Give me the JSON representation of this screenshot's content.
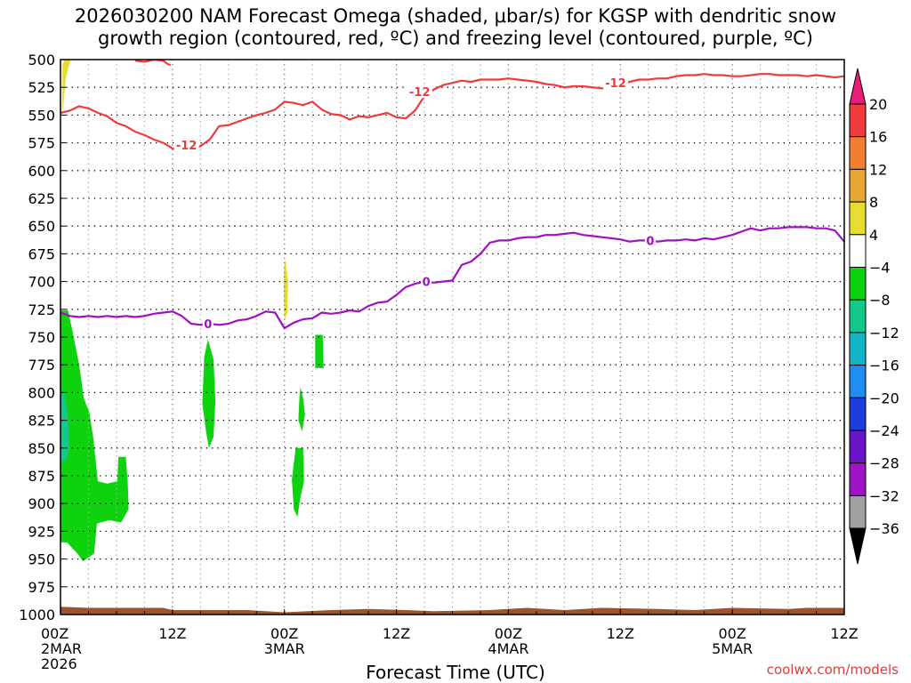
{
  "title": "2026030200 NAM Forecast Omega (shaded, μbar/s) for KGSP with dendritic snow\ngrowth region (contoured, red, ºC) and freezing level (contoured, purple, ºC)",
  "credit": "coolwx.com/models",
  "chart_data": {
    "type": "heatmap",
    "xlabel": "Forecast Time (UTC)",
    "x_range_hours": [
      0,
      84
    ],
    "y_range_hpa": [
      500,
      1000
    ],
    "y_ticks": [
      500,
      525,
      550,
      575,
      600,
      625,
      650,
      675,
      700,
      725,
      750,
      775,
      800,
      825,
      850,
      875,
      900,
      925,
      950,
      975,
      1000
    ],
    "x_ticks": [
      {
        "h": 0,
        "lines": [
          "00Z",
          "2MAR",
          "2026"
        ]
      },
      {
        "h": 12,
        "lines": [
          "12Z"
        ]
      },
      {
        "h": 24,
        "lines": [
          "00Z",
          "3MAR"
        ]
      },
      {
        "h": 36,
        "lines": [
          "12Z"
        ]
      },
      {
        "h": 48,
        "lines": [
          "00Z",
          "4MAR"
        ]
      },
      {
        "h": 60,
        "lines": [
          "12Z"
        ]
      },
      {
        "h": 72,
        "lines": [
          "00Z",
          "5MAR"
        ]
      },
      {
        "h": 84,
        "lines": [
          "12Z"
        ]
      }
    ],
    "grid": true,
    "colorbar": {
      "location": "right",
      "levels": [
        "20",
        "16",
        "12",
        "8",
        "4",
        "−4",
        "−8",
        "−12",
        "−16",
        "−20",
        "−24",
        "−28",
        "−32",
        "−36"
      ],
      "colors": [
        "#ea1c78",
        "#f03c3c",
        "#f08030",
        "#e6a830",
        "#e6dc32",
        "#ffffff",
        "#0fd20f",
        "#14c88c",
        "#14b4c8",
        "#1e8cf0",
        "#1e3cdc",
        "#6a14c8",
        "#a014c8",
        "#a0a0a0",
        "#000000"
      ]
    },
    "series": [
      {
        "name": "-12",
        "color": "#ee3b3b",
        "points": [
          [
            0,
            548
          ],
          [
            1,
            546
          ],
          [
            2,
            542
          ],
          [
            3,
            544
          ],
          [
            4,
            548
          ],
          [
            5,
            551
          ],
          [
            6,
            557
          ],
          [
            7,
            560
          ],
          [
            8,
            565
          ],
          [
            9,
            568
          ],
          [
            10,
            572
          ],
          [
            11,
            575
          ],
          [
            12,
            580
          ],
          [
            12.5,
            582
          ],
          [
            13,
            580
          ],
          [
            14,
            582
          ],
          [
            15,
            578
          ],
          [
            16,
            572
          ],
          [
            17,
            560
          ],
          [
            18,
            559
          ],
          [
            19,
            556
          ],
          [
            20,
            553
          ],
          [
            21,
            550
          ],
          [
            22,
            548
          ],
          [
            23,
            545
          ],
          [
            24,
            538
          ],
          [
            25,
            539
          ],
          [
            26,
            541
          ],
          [
            27,
            538
          ],
          [
            28,
            545
          ],
          [
            29,
            549
          ],
          [
            30,
            550
          ],
          [
            31,
            554
          ],
          [
            32,
            551
          ],
          [
            33,
            552
          ],
          [
            34,
            550
          ],
          [
            35,
            548
          ],
          [
            36,
            552
          ],
          [
            37,
            553
          ],
          [
            38,
            546
          ],
          [
            39,
            533
          ],
          [
            40,
            527
          ],
          [
            41,
            523
          ],
          [
            42,
            521
          ],
          [
            43,
            519
          ],
          [
            44,
            520
          ],
          [
            45,
            518
          ],
          [
            46,
            518
          ],
          [
            47,
            518
          ],
          [
            48,
            517
          ],
          [
            49,
            518
          ],
          [
            50,
            519
          ],
          [
            51,
            520
          ],
          [
            52,
            522
          ],
          [
            53,
            523
          ],
          [
            54,
            525
          ],
          [
            55,
            524
          ],
          [
            56,
            524
          ],
          [
            57,
            525
          ],
          [
            58,
            526
          ],
          [
            59,
            525
          ],
          [
            60,
            522
          ],
          [
            61,
            520
          ],
          [
            62,
            518
          ],
          [
            63,
            518
          ],
          [
            64,
            517
          ],
          [
            65,
            517
          ],
          [
            66,
            515
          ],
          [
            67,
            514
          ],
          [
            68,
            514
          ],
          [
            69,
            513
          ],
          [
            70,
            514
          ],
          [
            71,
            514
          ],
          [
            72,
            515
          ],
          [
            73,
            515
          ],
          [
            74,
            514
          ],
          [
            75,
            513
          ],
          [
            76,
            513
          ],
          [
            77,
            514
          ],
          [
            78,
            514
          ],
          [
            79,
            514
          ],
          [
            80,
            515
          ],
          [
            81,
            514
          ],
          [
            82,
            515
          ],
          [
            83,
            516
          ],
          [
            84,
            515
          ]
        ],
        "labels": [
          {
            "x": 13.5,
            "y": 577
          },
          {
            "x": 38.5,
            "y": 529
          },
          {
            "x": 59.5,
            "y": 521
          }
        ]
      },
      {
        "name": "-12 (upper)",
        "color": "#ee3b3b",
        "points": [
          [
            8,
            501
          ],
          [
            9,
            502
          ],
          [
            10,
            500
          ],
          [
            11,
            501
          ],
          [
            11.5,
            504
          ],
          [
            11.8,
            505
          ]
        ]
      },
      {
        "name": "0",
        "color": "#a010c0",
        "points": [
          [
            0,
            728
          ],
          [
            1,
            731
          ],
          [
            2,
            732
          ],
          [
            3,
            731
          ],
          [
            4,
            732
          ],
          [
            5,
            731
          ],
          [
            6,
            732
          ],
          [
            7,
            731
          ],
          [
            8,
            732
          ],
          [
            9,
            731
          ],
          [
            10,
            729
          ],
          [
            11,
            728
          ],
          [
            12,
            727
          ],
          [
            13,
            731
          ],
          [
            14,
            738
          ],
          [
            15,
            739
          ],
          [
            16,
            738
          ],
          [
            17,
            739
          ],
          [
            18,
            738
          ],
          [
            19,
            735
          ],
          [
            20,
            734
          ],
          [
            21,
            731
          ],
          [
            22,
            727
          ],
          [
            23,
            728
          ],
          [
            24,
            742
          ],
          [
            25,
            737
          ],
          [
            26,
            734
          ],
          [
            27,
            733
          ],
          [
            28,
            728
          ],
          [
            29,
            729
          ],
          [
            30,
            728
          ],
          [
            31,
            726
          ],
          [
            32,
            727
          ],
          [
            33,
            722
          ],
          [
            34,
            719
          ],
          [
            35,
            718
          ],
          [
            36,
            712
          ],
          [
            37,
            705
          ],
          [
            38,
            702
          ],
          [
            39,
            700
          ],
          [
            40,
            701
          ],
          [
            41,
            700
          ],
          [
            42,
            699
          ],
          [
            43,
            685
          ],
          [
            44,
            682
          ],
          [
            45,
            675
          ],
          [
            46,
            665
          ],
          [
            47,
            663
          ],
          [
            48,
            663
          ],
          [
            49,
            661
          ],
          [
            50,
            660
          ],
          [
            51,
            660
          ],
          [
            52,
            658
          ],
          [
            53,
            658
          ],
          [
            54,
            657
          ],
          [
            55,
            656
          ],
          [
            56,
            658
          ],
          [
            57,
            659
          ],
          [
            58,
            660
          ],
          [
            59,
            661
          ],
          [
            60,
            662
          ],
          [
            61,
            664
          ],
          [
            62,
            663
          ],
          [
            63,
            663
          ],
          [
            64,
            664
          ],
          [
            65,
            663
          ],
          [
            66,
            663
          ],
          [
            67,
            662
          ],
          [
            68,
            663
          ],
          [
            69,
            661
          ],
          [
            70,
            662
          ],
          [
            71,
            660
          ],
          [
            72,
            658
          ],
          [
            73,
            655
          ],
          [
            74,
            652
          ],
          [
            75,
            654
          ],
          [
            76,
            652
          ],
          [
            77,
            652
          ],
          [
            78,
            651
          ],
          [
            79,
            651
          ],
          [
            80,
            651
          ],
          [
            81,
            652
          ],
          [
            82,
            652
          ],
          [
            83,
            654
          ],
          [
            84,
            664
          ]
        ],
        "labels": [
          {
            "x": 15.8,
            "y": 738
          },
          {
            "x": 39.2,
            "y": 700
          },
          {
            "x": 63.2,
            "y": 663
          }
        ]
      }
    ],
    "omega_regions": [
      {
        "color": "#e6dc32",
        "polygon": [
          [
            0.2,
            550
          ],
          [
            0.6,
            515
          ],
          [
            1.2,
            497
          ],
          [
            0.6,
            497
          ],
          [
            0.2,
            505
          ]
        ]
      },
      {
        "color": "#e6dc32",
        "polygon": [
          [
            24.1,
            680
          ],
          [
            24.4,
            700
          ],
          [
            24.3,
            728
          ],
          [
            24.0,
            735
          ],
          [
            23.9,
            700
          ],
          [
            24.0,
            685
          ]
        ]
      },
      {
        "color": "#0fd20f",
        "polygon": [
          [
            0,
            726
          ],
          [
            0.8,
            726
          ],
          [
            1.3,
            745
          ],
          [
            2.0,
            775
          ],
          [
            2.5,
            805
          ],
          [
            3.1,
            818
          ],
          [
            3.5,
            840
          ],
          [
            4.0,
            880
          ],
          [
            5.0,
            882
          ],
          [
            6.1,
            880
          ],
          [
            6.2,
            858
          ],
          [
            7.0,
            858
          ],
          [
            7.2,
            880
          ],
          [
            7.3,
            905
          ],
          [
            6.5,
            917
          ],
          [
            5.2,
            915
          ],
          [
            3.9,
            918
          ],
          [
            3.6,
            945
          ],
          [
            2.4,
            952
          ],
          [
            1.8,
            945
          ],
          [
            0.7,
            935
          ],
          [
            0,
            935
          ]
        ]
      },
      {
        "color": "#14c88c",
        "polygon": [
          [
            0,
            800
          ],
          [
            0.4,
            800
          ],
          [
            0.8,
            820
          ],
          [
            0.9,
            850
          ],
          [
            0.6,
            862
          ],
          [
            0,
            862
          ]
        ]
      },
      {
        "color": "#0fd20f",
        "polygon": [
          [
            15.8,
            752
          ],
          [
            16.4,
            770
          ],
          [
            16.6,
            808
          ],
          [
            16.4,
            840
          ],
          [
            15.9,
            850
          ],
          [
            15.6,
            835
          ],
          [
            15.2,
            810
          ],
          [
            15.4,
            768
          ]
        ]
      },
      {
        "color": "#0fd20f",
        "polygon": [
          [
            25.7,
            795
          ],
          [
            26.0,
            805
          ],
          [
            26.2,
            820
          ],
          [
            25.9,
            835
          ],
          [
            25.5,
            825
          ],
          [
            25.6,
            805
          ]
        ]
      },
      {
        "color": "#0fd20f",
        "polygon": [
          [
            27.3,
            748
          ],
          [
            28.1,
            748
          ],
          [
            28.2,
            778
          ],
          [
            27.3,
            778
          ]
        ]
      },
      {
        "color": "#0fd20f",
        "polygon": [
          [
            25.2,
            850
          ],
          [
            26.0,
            850
          ],
          [
            26.1,
            880
          ],
          [
            25.7,
            895
          ],
          [
            25.4,
            912
          ],
          [
            25.0,
            905
          ],
          [
            24.8,
            878
          ]
        ]
      }
    ],
    "ground": {
      "color": "#a0522d",
      "top": [
        [
          0,
          993
        ],
        [
          3,
          994
        ],
        [
          8,
          994
        ],
        [
          11,
          994
        ],
        [
          12,
          996
        ],
        [
          20,
          996
        ],
        [
          24,
          998
        ],
        [
          29,
          996
        ],
        [
          33,
          995
        ],
        [
          37,
          996
        ],
        [
          40,
          997
        ],
        [
          46,
          996
        ],
        [
          50,
          994
        ],
        [
          54,
          996
        ],
        [
          58,
          994
        ],
        [
          64,
          995
        ],
        [
          68,
          996
        ],
        [
          72,
          994
        ],
        [
          78,
          995
        ],
        [
          80,
          994
        ],
        [
          84,
          994
        ]
      ]
    }
  }
}
